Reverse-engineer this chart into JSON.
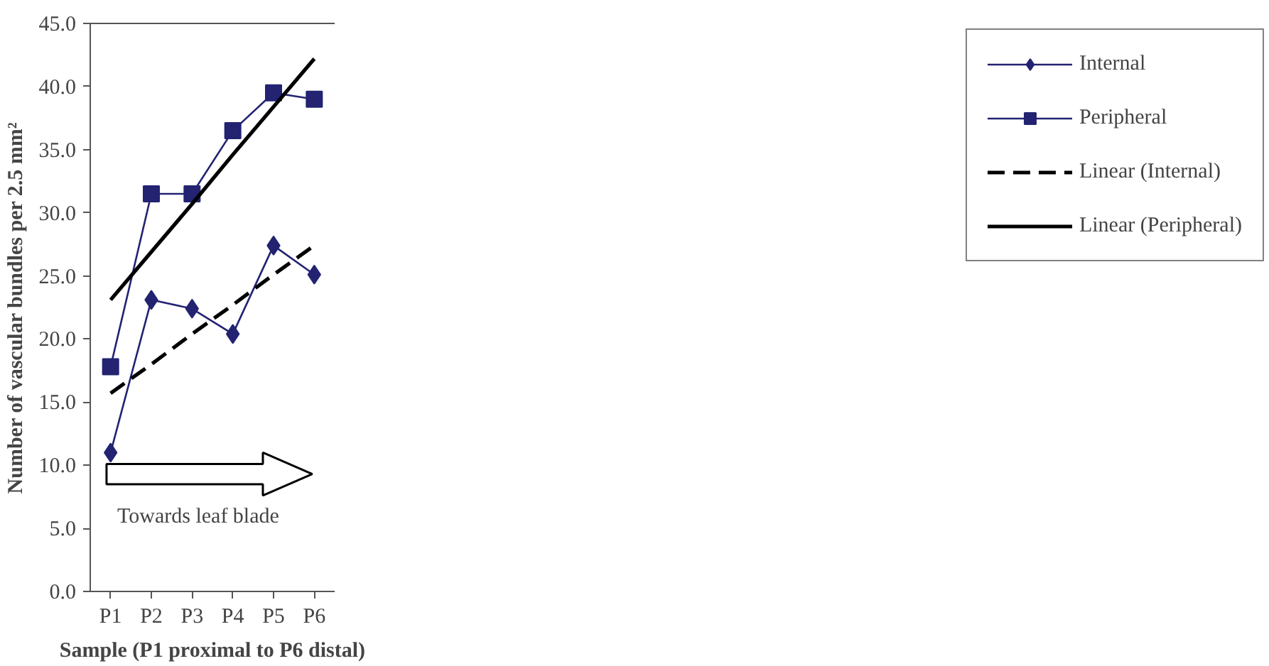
{
  "chart_data": {
    "type": "line",
    "xlabel": "Sample (P1 proximal to P6 distal)",
    "ylabel": "Number of vascular bundles per 2.5 mm²",
    "categories": [
      "P1",
      "P2",
      "P3",
      "P4",
      "P5",
      "P6"
    ],
    "series": [
      {
        "name": "Internal",
        "color": "#232372",
        "marker": "diamond",
        "line_style": "solid",
        "values": [
          11.0,
          23.1,
          22.4,
          20.4,
          27.4,
          25.1
        ]
      },
      {
        "name": "Peripheral",
        "color": "#232372",
        "marker": "square",
        "line_style": "solid",
        "values": [
          17.8,
          31.5,
          31.5,
          36.5,
          39.5,
          39.0
        ]
      },
      {
        "name": "Linear (Internal)",
        "color": "#000000",
        "marker": "none",
        "line_style": "dashed",
        "values": [
          15.7,
          18.0,
          20.4,
          22.7,
          25.1,
          27.4
        ]
      },
      {
        "name": "Linear (Peripheral)",
        "color": "#000000",
        "marker": "none",
        "line_style": "solid",
        "values": [
          23.1,
          26.9,
          30.7,
          34.6,
          38.4,
          42.2
        ]
      }
    ],
    "ylim": [
      0,
      45
    ],
    "yticks": [
      {
        "value": 0,
        "label": "0.0"
      },
      {
        "value": 5,
        "label": "5.0"
      },
      {
        "value": 10,
        "label": "10.0"
      },
      {
        "value": 15,
        "label": "15.0"
      },
      {
        "value": 20,
        "label": "20.0"
      },
      {
        "value": 25,
        "label": "25.0"
      },
      {
        "value": 30,
        "label": "30.0"
      },
      {
        "value": 35,
        "label": "35.0"
      },
      {
        "value": 40,
        "label": "40.0"
      },
      {
        "value": 45,
        "label": "45.0"
      }
    ],
    "annotations": [
      "Towards leaf blade"
    ],
    "grid": false,
    "legend": "right"
  }
}
